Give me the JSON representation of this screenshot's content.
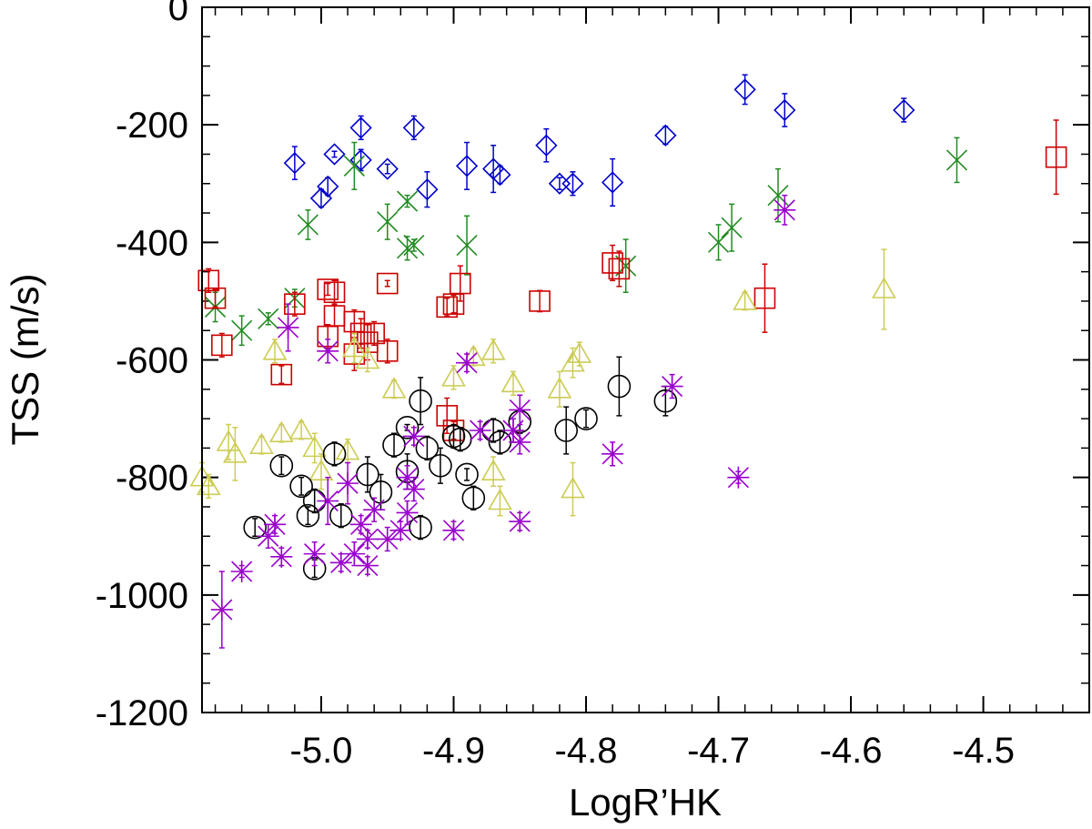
{
  "chart_data": {
    "type": "scatter",
    "title": "",
    "xlabel": "LogR’HK",
    "ylabel": "TSS (m/s)",
    "xlim": [
      -5.09,
      -4.42
    ],
    "ylim": [
      -1200,
      0
    ],
    "xticks": [
      {
        "value": -5.0,
        "label": "-5.0"
      },
      {
        "value": -4.9,
        "label": "-4.9"
      },
      {
        "value": -4.8,
        "label": "-4.8"
      },
      {
        "value": -4.7,
        "label": "-4.7"
      },
      {
        "value": -4.6,
        "label": "-4.6"
      },
      {
        "value": -4.5,
        "label": "-4.5"
      }
    ],
    "yticks": [
      {
        "value": 0,
        "label": "0"
      },
      {
        "value": -200,
        "label": "-200"
      },
      {
        "value": -400,
        "label": "-400"
      },
      {
        "value": -600,
        "label": "-600"
      },
      {
        "value": -800,
        "label": "-800"
      },
      {
        "value": -1000,
        "label": "-1000"
      },
      {
        "value": -1200,
        "label": "-1200"
      }
    ],
    "series": [
      {
        "name": "diamond-blue",
        "marker": "diamond",
        "color": "#0000cc",
        "points": [
          {
            "x": -5.02,
            "y": -265,
            "err": 28
          },
          {
            "x": -4.99,
            "y": -250,
            "err": 5
          },
          {
            "x": -4.97,
            "y": -205,
            "err": 20
          },
          {
            "x": -4.95,
            "y": -275,
            "err": 8
          },
          {
            "x": -4.93,
            "y": -205,
            "err": 20
          },
          {
            "x": -4.97,
            "y": -260,
            "err": 18
          },
          {
            "x": -5.0,
            "y": -325,
            "err": 15
          },
          {
            "x": -4.995,
            "y": -305,
            "err": 15
          },
          {
            "x": -4.92,
            "y": -310,
            "err": 30
          },
          {
            "x": -4.89,
            "y": -270,
            "err": 40
          },
          {
            "x": -4.87,
            "y": -275,
            "err": 40
          },
          {
            "x": -4.865,
            "y": -285,
            "err": 15
          },
          {
            "x": -4.83,
            "y": -235,
            "err": 28
          },
          {
            "x": -4.82,
            "y": -300,
            "err": 10
          },
          {
            "x": -4.81,
            "y": -300,
            "err": 20
          },
          {
            "x": -4.78,
            "y": -298,
            "err": 40
          },
          {
            "x": -4.74,
            "y": -218,
            "err": 15
          },
          {
            "x": -4.68,
            "y": -140,
            "err": 25
          },
          {
            "x": -4.65,
            "y": -175,
            "err": 28
          },
          {
            "x": -4.56,
            "y": -175,
            "err": 20
          }
        ]
      },
      {
        "name": "x-green",
        "marker": "x",
        "color": "#228b22",
        "points": [
          {
            "x": -5.08,
            "y": -510,
            "err": 25
          },
          {
            "x": -5.06,
            "y": -550,
            "err": 25
          },
          {
            "x": -5.04,
            "y": -530,
            "err": 10
          },
          {
            "x": -5.02,
            "y": -495,
            "err": 15
          },
          {
            "x": -5.01,
            "y": -370,
            "err": 25
          },
          {
            "x": -4.975,
            "y": -270,
            "err": 40
          },
          {
            "x": -4.95,
            "y": -365,
            "err": 30
          },
          {
            "x": -4.935,
            "y": -330,
            "err": 10
          },
          {
            "x": -4.935,
            "y": -410,
            "err": 20
          },
          {
            "x": -4.93,
            "y": -405,
            "err": 10
          },
          {
            "x": -4.89,
            "y": -405,
            "err": 50
          },
          {
            "x": -4.77,
            "y": -440,
            "err": 45
          },
          {
            "x": -4.7,
            "y": -400,
            "err": 30
          },
          {
            "x": -4.69,
            "y": -375,
            "err": 40
          },
          {
            "x": -4.655,
            "y": -320,
            "err": 45
          },
          {
            "x": -4.52,
            "y": -260,
            "err": 38
          }
        ]
      },
      {
        "name": "square-red",
        "marker": "square",
        "color": "#cc0000",
        "points": [
          {
            "x": -5.085,
            "y": -465,
            "err": 20
          },
          {
            "x": -5.08,
            "y": -495,
            "err": 15
          },
          {
            "x": -5.075,
            "y": -575,
            "err": 20
          },
          {
            "x": -5.02,
            "y": -505,
            "err": 20
          },
          {
            "x": -5.03,
            "y": -625,
            "err": 15
          },
          {
            "x": -4.995,
            "y": -480,
            "err": 10
          },
          {
            "x": -4.99,
            "y": -485,
            "err": 20
          },
          {
            "x": -4.99,
            "y": -525,
            "err": 18
          },
          {
            "x": -4.995,
            "y": -560,
            "err": 20
          },
          {
            "x": -4.975,
            "y": -535,
            "err": 20
          },
          {
            "x": -4.97,
            "y": -555,
            "err": 25
          },
          {
            "x": -4.965,
            "y": -570,
            "err": 30
          },
          {
            "x": -4.975,
            "y": -590,
            "err": 28
          },
          {
            "x": -4.96,
            "y": -555,
            "err": 20
          },
          {
            "x": -4.95,
            "y": -585,
            "err": 20
          },
          {
            "x": -4.95,
            "y": -470,
            "err": 5
          },
          {
            "x": -4.905,
            "y": -510,
            "err": 15
          },
          {
            "x": -4.9,
            "y": -505,
            "err": 15
          },
          {
            "x": -4.895,
            "y": -470,
            "err": 30
          },
          {
            "x": -4.905,
            "y": -695,
            "err": 30
          },
          {
            "x": -4.9,
            "y": -720,
            "err": 15
          },
          {
            "x": -4.835,
            "y": -500,
            "err": 18
          },
          {
            "x": -4.78,
            "y": -435,
            "err": 30
          },
          {
            "x": -4.775,
            "y": -445,
            "err": 30
          },
          {
            "x": -4.665,
            "y": -495,
            "err": 58
          },
          {
            "x": -4.445,
            "y": -255,
            "err": 63
          }
        ]
      },
      {
        "name": "triangle-yellow",
        "marker": "triangle",
        "color": "#cccc55",
        "points": [
          {
            "x": -5.09,
            "y": -800,
            "err": 25
          },
          {
            "x": -5.085,
            "y": -815,
            "err": 20
          },
          {
            "x": -5.07,
            "y": -740,
            "err": 30
          },
          {
            "x": -5.065,
            "y": -760,
            "err": 45
          },
          {
            "x": -5.045,
            "y": -745,
            "err": 15
          },
          {
            "x": -5.035,
            "y": -585,
            "err": 20
          },
          {
            "x": -5.03,
            "y": -725,
            "err": 15
          },
          {
            "x": -5.015,
            "y": -720,
            "err": 15
          },
          {
            "x": -5.005,
            "y": -750,
            "err": 25
          },
          {
            "x": -5.0,
            "y": -790,
            "err": 30
          },
          {
            "x": -4.98,
            "y": -755,
            "err": 20
          },
          {
            "x": -4.975,
            "y": -580,
            "err": 25
          },
          {
            "x": -4.965,
            "y": -600,
            "err": 20
          },
          {
            "x": -4.945,
            "y": -650,
            "err": 15
          },
          {
            "x": -4.9,
            "y": -630,
            "err": 20
          },
          {
            "x": -4.885,
            "y": -595,
            "err": 15
          },
          {
            "x": -4.87,
            "y": -585,
            "err": 20
          },
          {
            "x": -4.855,
            "y": -640,
            "err": 20
          },
          {
            "x": -4.82,
            "y": -650,
            "err": 30
          },
          {
            "x": -4.81,
            "y": -605,
            "err": 25
          },
          {
            "x": -4.805,
            "y": -590,
            "err": 20
          },
          {
            "x": -4.81,
            "y": -820,
            "err": 45
          },
          {
            "x": -4.87,
            "y": -790,
            "err": 25
          },
          {
            "x": -4.865,
            "y": -840,
            "err": 25
          },
          {
            "x": -4.68,
            "y": -500,
            "err": 15
          },
          {
            "x": -4.575,
            "y": -480,
            "err": 68
          }
        ]
      },
      {
        "name": "circle-black",
        "marker": "circle",
        "color": "#000000",
        "points": [
          {
            "x": -5.05,
            "y": -885,
            "err": 15
          },
          {
            "x": -5.03,
            "y": -780,
            "err": 15
          },
          {
            "x": -5.015,
            "y": -815,
            "err": 15
          },
          {
            "x": -5.01,
            "y": -865,
            "err": 15
          },
          {
            "x": -5.005,
            "y": -840,
            "err": 20
          },
          {
            "x": -5.005,
            "y": -955,
            "err": 15
          },
          {
            "x": -4.99,
            "y": -760,
            "err": 20
          },
          {
            "x": -4.985,
            "y": -865,
            "err": 20
          },
          {
            "x": -4.965,
            "y": -795,
            "err": 30
          },
          {
            "x": -4.955,
            "y": -825,
            "err": 30
          },
          {
            "x": -4.945,
            "y": -745,
            "err": 20
          },
          {
            "x": -4.935,
            "y": -790,
            "err": 30
          },
          {
            "x": -4.935,
            "y": -715,
            "err": 5
          },
          {
            "x": -4.925,
            "y": -670,
            "err": 40
          },
          {
            "x": -4.92,
            "y": -750,
            "err": 20
          },
          {
            "x": -4.925,
            "y": -885,
            "err": 20
          },
          {
            "x": -4.91,
            "y": -780,
            "err": 30
          },
          {
            "x": -4.9,
            "y": -730,
            "err": 20
          },
          {
            "x": -4.895,
            "y": -735,
            "err": 20
          },
          {
            "x": -4.89,
            "y": -795,
            "err": 10
          },
          {
            "x": -4.885,
            "y": -835,
            "err": 20
          },
          {
            "x": -4.87,
            "y": -720,
            "err": 20
          },
          {
            "x": -4.865,
            "y": -740,
            "err": 20
          },
          {
            "x": -4.85,
            "y": -705,
            "err": 20
          },
          {
            "x": -4.815,
            "y": -720,
            "err": 40
          },
          {
            "x": -4.8,
            "y": -700,
            "err": 15
          },
          {
            "x": -4.775,
            "y": -645,
            "err": 50
          },
          {
            "x": -4.74,
            "y": -670,
            "err": 25
          }
        ]
      },
      {
        "name": "asterisk-purple",
        "marker": "asterisk",
        "color": "#9900cc",
        "points": [
          {
            "x": -5.075,
            "y": -1025,
            "err": 65
          },
          {
            "x": -5.06,
            "y": -960,
            "err": 10
          },
          {
            "x": -5.04,
            "y": -900,
            "err": 20
          },
          {
            "x": -5.035,
            "y": -880,
            "err": 15
          },
          {
            "x": -5.03,
            "y": -935,
            "err": 15
          },
          {
            "x": -5.025,
            "y": -545,
            "err": 40
          },
          {
            "x": -5.005,
            "y": -930,
            "err": 20
          },
          {
            "x": -4.995,
            "y": -585,
            "err": 20
          },
          {
            "x": -4.995,
            "y": -840,
            "err": 40
          },
          {
            "x": -4.985,
            "y": -945,
            "err": 15
          },
          {
            "x": -4.98,
            "y": -810,
            "err": 35
          },
          {
            "x": -4.975,
            "y": -930,
            "err": 20
          },
          {
            "x": -4.97,
            "y": -880,
            "err": 15
          },
          {
            "x": -4.965,
            "y": -905,
            "err": 15
          },
          {
            "x": -4.965,
            "y": -950,
            "err": 15
          },
          {
            "x": -4.96,
            "y": -855,
            "err": 20
          },
          {
            "x": -4.95,
            "y": -905,
            "err": 20
          },
          {
            "x": -4.94,
            "y": -890,
            "err": 15
          },
          {
            "x": -4.935,
            "y": -860,
            "err": 20
          },
          {
            "x": -4.935,
            "y": -800,
            "err": 20
          },
          {
            "x": -4.93,
            "y": -730,
            "err": 15
          },
          {
            "x": -4.93,
            "y": -820,
            "err": 20
          },
          {
            "x": -4.9,
            "y": -890,
            "err": 15
          },
          {
            "x": -4.89,
            "y": -605,
            "err": 15
          },
          {
            "x": -4.88,
            "y": -720,
            "err": 15
          },
          {
            "x": -4.855,
            "y": -720,
            "err": 20
          },
          {
            "x": -4.85,
            "y": -685,
            "err": 25
          },
          {
            "x": -4.85,
            "y": -740,
            "err": 20
          },
          {
            "x": -4.85,
            "y": -875,
            "err": 15
          },
          {
            "x": -4.78,
            "y": -760,
            "err": 20
          },
          {
            "x": -4.735,
            "y": -645,
            "err": 20
          },
          {
            "x": -4.685,
            "y": -800,
            "err": 10
          },
          {
            "x": -4.65,
            "y": -345,
            "err": 25
          }
        ]
      }
    ]
  }
}
